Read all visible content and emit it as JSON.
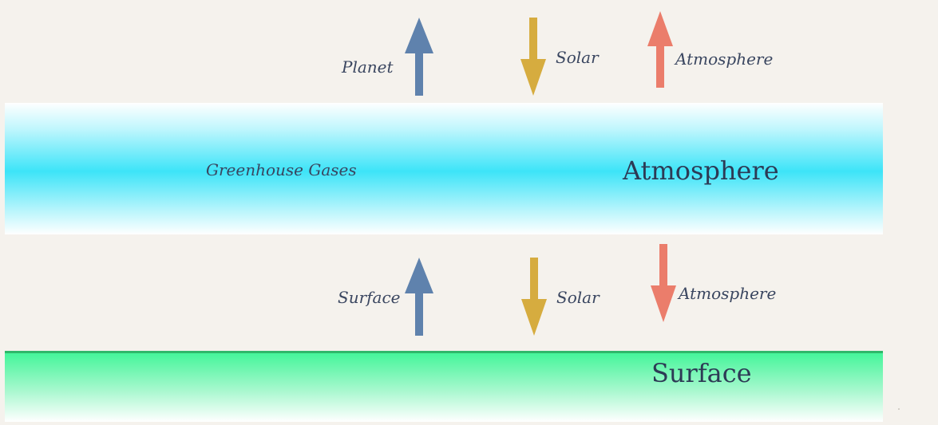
{
  "colors": {
    "planet_arrow": "#5f82ad",
    "solar_arrow": "#d6ac3f",
    "atmosphere_arrow": "#eb7d6b",
    "atmosphere_band": "#3de4f8",
    "surface_band": "#45f59a",
    "surface_line": "#2fb86a",
    "text": "#3a4660"
  },
  "top_flows": {
    "planet": {
      "label": "Planet",
      "direction": "up",
      "icon": "arrow-up-icon"
    },
    "solar": {
      "label": "Solar",
      "direction": "down",
      "icon": "arrow-down-icon"
    },
    "atmosphere": {
      "label": "Atmosphere",
      "direction": "up",
      "icon": "arrow-up-icon"
    }
  },
  "atmosphere_layer": {
    "gases_label": "Greenhouse Gases",
    "title": "Atmosphere"
  },
  "bottom_flows": {
    "surface": {
      "label": "Surface",
      "direction": "up",
      "icon": "arrow-up-icon"
    },
    "solar": {
      "label": "Solar",
      "direction": "down",
      "icon": "arrow-down-icon"
    },
    "atmosphere": {
      "label": "Atmosphere",
      "direction": "down",
      "icon": "arrow-down-icon"
    }
  },
  "surface_layer": {
    "title": "Surface"
  }
}
